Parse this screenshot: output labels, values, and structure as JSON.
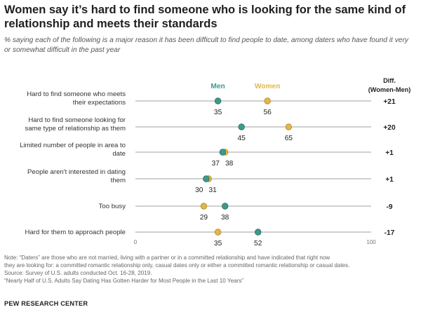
{
  "title": "Women say it’s hard to find someone who is looking for the same kind of relationship and meets their standards",
  "subtitle": "% saying each of the following is a major reason it has been difficult to find people to date, among daters who have found it very or somewhat difficult in the past year",
  "colors": {
    "men": "#3d9a8b",
    "women": "#e2b64b",
    "line": "#b3b3b3"
  },
  "chart_data": {
    "type": "dot",
    "x_range": [
      0,
      100
    ],
    "x_ticks": [
      "0",
      "100"
    ],
    "legend": [
      "Men",
      "Women"
    ],
    "diff_header": [
      "Diff.",
      "(Women-Men)"
    ],
    "rows": [
      {
        "label": [
          "Hard to find someone who meets",
          "their expectations"
        ],
        "men": 35,
        "women": 56,
        "diff": "+21"
      },
      {
        "label": [
          "Hard to find someone looking for",
          "same type of relationship as them"
        ],
        "men": 45,
        "women": 65,
        "diff": "+20"
      },
      {
        "label": [
          "Limited number of people in area to",
          "date"
        ],
        "men": 37,
        "women": 38,
        "diff": "+1"
      },
      {
        "label": [
          "People aren't interested in dating",
          "them"
        ],
        "men": 30,
        "women": 31,
        "diff": "+1"
      },
      {
        "label": [
          "Too busy"
        ],
        "men": 38,
        "women": 29,
        "diff": "-9"
      },
      {
        "label": [
          "Hard for them to approach people"
        ],
        "men": 52,
        "women": 35,
        "diff": "-17"
      }
    ]
  },
  "notes": [
    "Note: “Daters” are those who are not married, living with a partner or in a committed relationship and have indicated that right now",
    "they are looking for: a committed romantic relationship only, casual dates only or either a committed romantic relationship or casual dates.",
    "Source: Survey of U.S. adults conducted Oct. 16-28, 2019.",
    "“Nearly Half of U.S. Adults Say Dating Has Gotten Harder for Most People in the Last 10 Years”"
  ],
  "org": "PEW RESEARCH CENTER"
}
